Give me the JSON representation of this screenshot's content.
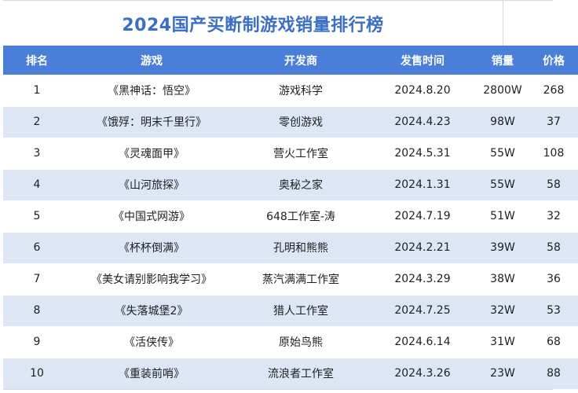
{
  "title": "2024国产买断制游戏销量排行榜",
  "colors": {
    "title": "#3b6fc6",
    "header_bg": "#4a7ed8",
    "stripe": "#dce6f4"
  },
  "headers": [
    "排名",
    "游戏",
    "开发商",
    "发售时间",
    "销量",
    "价格"
  ],
  "rows": [
    [
      "1",
      "《黑神话：悟空》",
      "游戏科学",
      "2024.8.20",
      "2800W",
      "268"
    ],
    [
      "2",
      "《饿殍：明末千里行》",
      "零创游戏",
      "2024.4.23",
      "98W",
      "37"
    ],
    [
      "3",
      "《灵魂面甲》",
      "营火工作室",
      "2024.5.31",
      "55W",
      "108"
    ],
    [
      "4",
      "《山河旅探》",
      "奥秘之家",
      "2024.1.31",
      "55W",
      "58"
    ],
    [
      "5",
      "《中国式网游》",
      "648工作室-涛",
      "2024.7.19",
      "51W",
      "32"
    ],
    [
      "6",
      "《杯杯倒满》",
      "孔明和熊熊",
      "2024.2.21",
      "39W",
      "58"
    ],
    [
      "7",
      "《美女请别影响我学习》",
      "蒸汽满满工作室",
      "2024.3.29",
      "38W",
      "36"
    ],
    [
      "8",
      "《失落城堡2》",
      "猎人工作室",
      "2024.7.25",
      "32W",
      "53"
    ],
    [
      "9",
      "《活侠传》",
      "原始鸟熊",
      "2024.6.14",
      "31W",
      "68"
    ],
    [
      "10",
      "《重装前哨》",
      "流浪者工作室",
      "2024.3.26",
      "23W",
      "88"
    ]
  ]
}
